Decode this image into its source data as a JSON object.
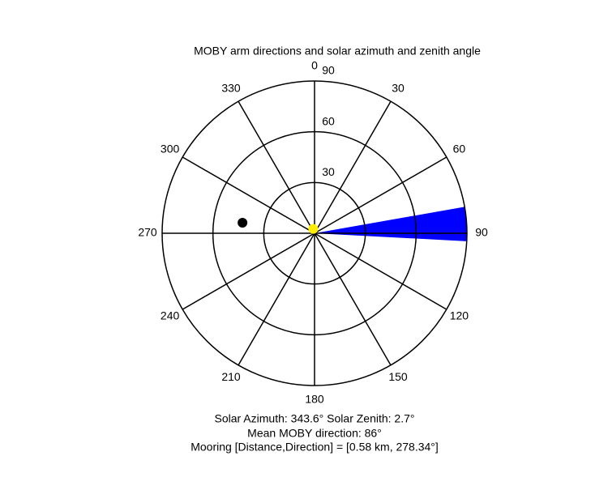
{
  "chart_data": {
    "type": "polar",
    "title": "MOBY arm directions and solar azimuth and zenith angle",
    "rlim": [
      0,
      90
    ],
    "rticks": [
      30,
      60,
      90
    ],
    "thetaticks": [
      0,
      30,
      60,
      90,
      120,
      150,
      180,
      210,
      240,
      270,
      300,
      330
    ],
    "moby_arc": {
      "color": "#0000ff",
      "range": [
        80,
        93
      ]
    },
    "sun": {
      "color": "#ffee00",
      "azimuth": 343.6,
      "zenith": 2.7
    },
    "mooring": {
      "color": "#000000",
      "direction": 278.34,
      "radius": 43
    },
    "annotations": [
      "Solar Azimuth: 343.6° Solar Zenith: 2.7°",
      "Mean MOBY direction: 86°",
      "Mooring [Distance,Direction] = [0.58 km, 278.34°]"
    ]
  }
}
